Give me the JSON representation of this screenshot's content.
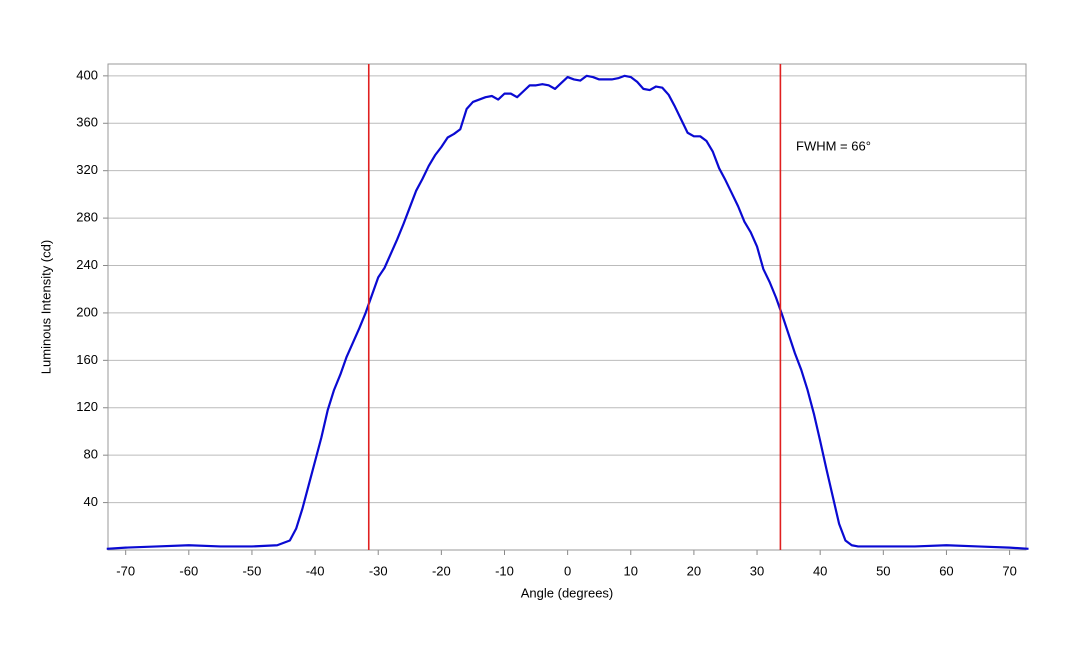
{
  "chart_data": {
    "type": "line",
    "x_label": "Angle (degrees)",
    "y_label": "Luminous Intensity (cd)",
    "annotation": "FWHM = 66°",
    "x": [
      -73,
      -70,
      -65,
      -60,
      -55,
      -50,
      -46,
      -44,
      -43,
      -42,
      -41,
      -40,
      -39,
      -38,
      -37,
      -36,
      -35,
      -34,
      -33,
      -32,
      -31,
      -30,
      -29,
      -28,
      -27,
      -26,
      -25,
      -24,
      -23,
      -22,
      -21,
      -20,
      -19,
      -18,
      -17,
      -16,
      -15,
      -14,
      -13,
      -12,
      -11,
      -10,
      -9,
      -8,
      -7,
      -6,
      -5,
      -4,
      -3,
      -2,
      -1,
      0,
      1,
      2,
      3,
      4,
      5,
      6,
      7,
      8,
      9,
      10,
      11,
      12,
      13,
      14,
      15,
      16,
      17,
      18,
      19,
      20,
      21,
      22,
      23,
      24,
      25,
      26,
      27,
      28,
      29,
      30,
      31,
      32,
      33,
      34,
      35,
      36,
      37,
      38,
      39,
      40,
      41,
      42,
      43,
      44,
      45,
      46,
      50,
      55,
      60,
      65,
      70,
      73
    ],
    "series": [
      {
        "color": "#0a0ad2",
        "values": [
          1,
          2,
          3,
          4,
          3,
          3,
          4,
          8,
          18,
          35,
          55,
          75,
          95,
          118,
          135,
          148,
          163,
          175,
          187,
          200,
          215,
          230,
          238,
          250,
          262,
          275,
          289,
          303,
          313,
          324,
          333,
          340,
          348,
          351,
          355,
          372,
          378,
          380,
          382,
          383,
          380,
          385,
          385,
          382,
          387,
          392,
          392,
          393,
          392,
          389,
          394,
          399,
          397,
          396,
          400,
          399,
          397,
          397,
          397,
          398,
          400,
          399,
          395,
          389,
          388,
          391,
          390,
          384,
          374,
          363,
          352,
          349,
          349,
          345,
          336,
          322,
          312,
          301,
          290,
          277,
          268,
          256,
          237,
          226,
          213,
          198,
          182,
          166,
          152,
          135,
          115,
          92,
          68,
          45,
          22,
          8,
          4,
          3,
          3,
          3,
          4,
          3,
          2,
          1
        ]
      }
    ],
    "vlines": [
      {
        "x": -31.5,
        "color": "#e02020"
      },
      {
        "x": 33.7,
        "color": "#e02020"
      }
    ],
    "xlim": [
      -72.8,
      72.6
    ],
    "ylim": [
      0,
      410
    ],
    "xticks": [
      -70,
      -60,
      -50,
      -40,
      -30,
      -20,
      -10,
      0,
      10,
      20,
      30,
      40,
      50,
      60,
      70
    ],
    "yticks": [
      40,
      80,
      120,
      160,
      200,
      240,
      280,
      320,
      360,
      400
    ],
    "grid": true
  }
}
